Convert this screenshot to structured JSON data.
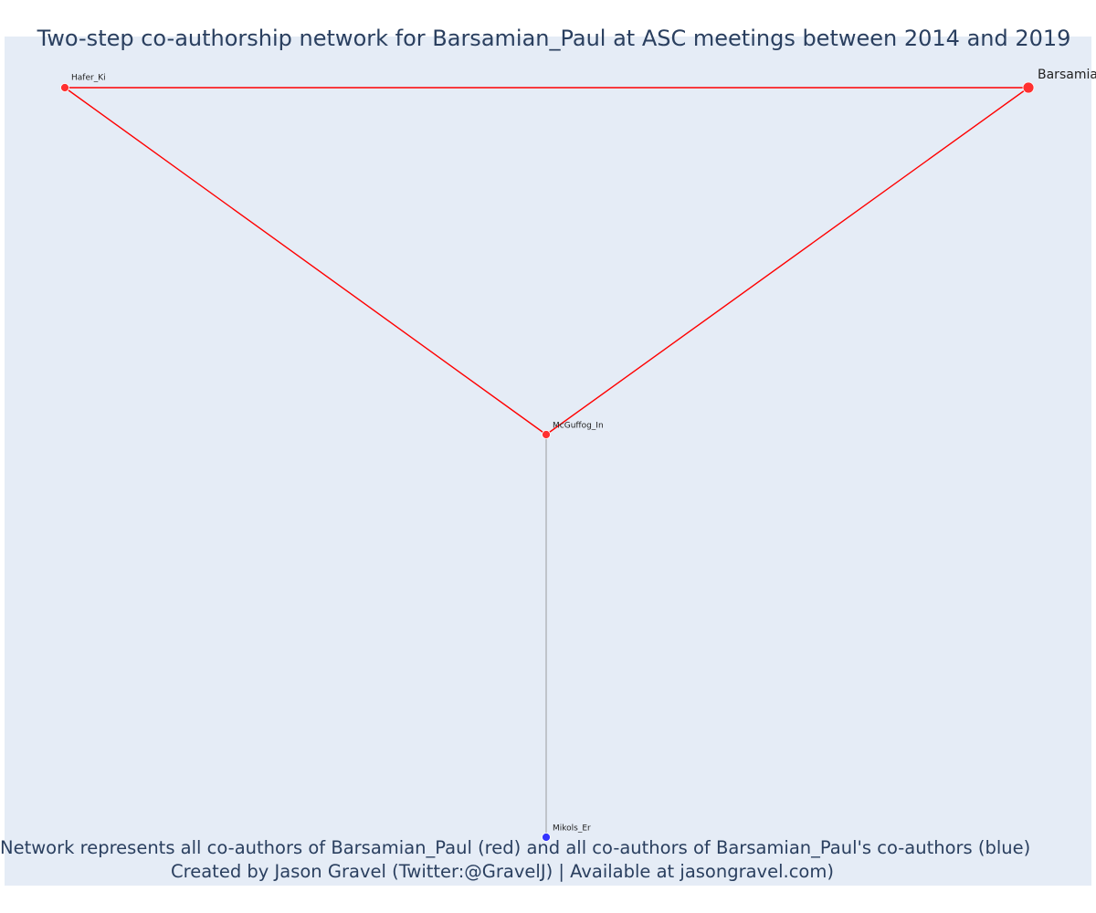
{
  "title": "Two-step co-authorship network for Barsamian_Paul at ASC meetings between 2014 and 2019",
  "caption": {
    "line1": "Network represents all co-authors of Barsamian_Paul (red) and all co-authors of Barsamian_Paul's co-authors (blue)",
    "line2": "Created by Jason Gravel (Twitter:@GravelJ) | Available at jasongravel.com)"
  },
  "colors": {
    "plot_background": "#e5ecf6",
    "coauthor": "#ff0000",
    "second_degree": "#0000ff",
    "text": "#2a3f5f"
  },
  "network": {
    "nodes": [
      {
        "id": "Barsamian_Paul",
        "label": "Barsamian_Paul",
        "group": "focal",
        "color": "red"
      },
      {
        "id": "Hafer_Ki",
        "label": "Hafer_Ki",
        "group": "coauthor",
        "color": "red"
      },
      {
        "id": "McGuffog_In",
        "label": "McGuffog_In",
        "group": "coauthor",
        "color": "red"
      },
      {
        "id": "Mikols_Er",
        "label": "Mikols_Er",
        "group": "second_degree",
        "color": "blue"
      }
    ],
    "edges": [
      {
        "source": "Hafer_Ki",
        "target": "Barsamian_Paul",
        "color": "red"
      },
      {
        "source": "Hafer_Ki",
        "target": "McGuffog_In",
        "color": "red"
      },
      {
        "source": "McGuffog_In",
        "target": "Barsamian_Paul",
        "color": "red"
      },
      {
        "source": "McGuffog_In",
        "target": "Mikols_Er",
        "color": "gray"
      }
    ]
  }
}
